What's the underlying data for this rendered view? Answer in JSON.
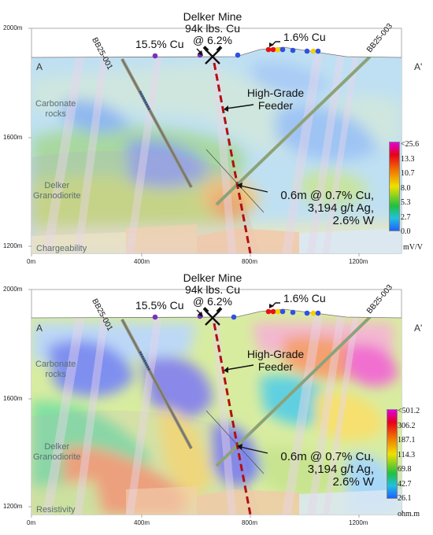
{
  "panels": [
    {
      "id": "chargeability",
      "method_label": "Chargeability",
      "scale_labels": [
        "<25.6",
        "13.3",
        "10.7",
        "8.0",
        "5.3",
        "2.7",
        "0.0"
      ],
      "unit": "mV/V"
    },
    {
      "id": "resistivity",
      "method_label": "Resistivity",
      "scale_labels": [
        "<501.2",
        "306.2",
        "187.1",
        "114.3",
        "69.8",
        "42.7",
        "26.1"
      ],
      "unit": "ohm.m"
    }
  ],
  "axes": {
    "y_labels": [
      "2000m",
      "1600m",
      "1200m"
    ],
    "x_labels": [
      "0m",
      "400m",
      "800m",
      "1200m"
    ]
  },
  "section_ends": {
    "left": "A",
    "right": "A'"
  },
  "rock_units": {
    "carbonate": [
      "Carbonate",
      "rocks"
    ],
    "granodiorite": [
      "Delker",
      "Granodiorite"
    ]
  },
  "annotations": {
    "mine": [
      "Delker Mine",
      "94k lbs. Cu",
      "@ 6.2%"
    ],
    "surface_left": "15.5% Cu",
    "surface_right": "1.6% Cu",
    "feeder": [
      "High-Grade",
      "Feeder"
    ],
    "intercept": [
      "0.6m @ 0.7% Cu,",
      "3,194 g/t Ag,",
      "2.6% W"
    ]
  },
  "drillholes": [
    "BB25-001",
    "BB25-003"
  ],
  "colors": {
    "scale_top": "#e000e0",
    "scale_high": "#e8001a",
    "scale_mid": "#f0e000",
    "scale_low": "#20c040",
    "scale_bottom": "#2060ff",
    "feeder_line": "#b01010",
    "sample_purple": "#7b2fbf",
    "sample_red": "#e81010",
    "sample_yellow": "#f5d000",
    "sample_blue": "#3050e0"
  },
  "icons": {
    "mine": "crossed-hammers-icon"
  }
}
